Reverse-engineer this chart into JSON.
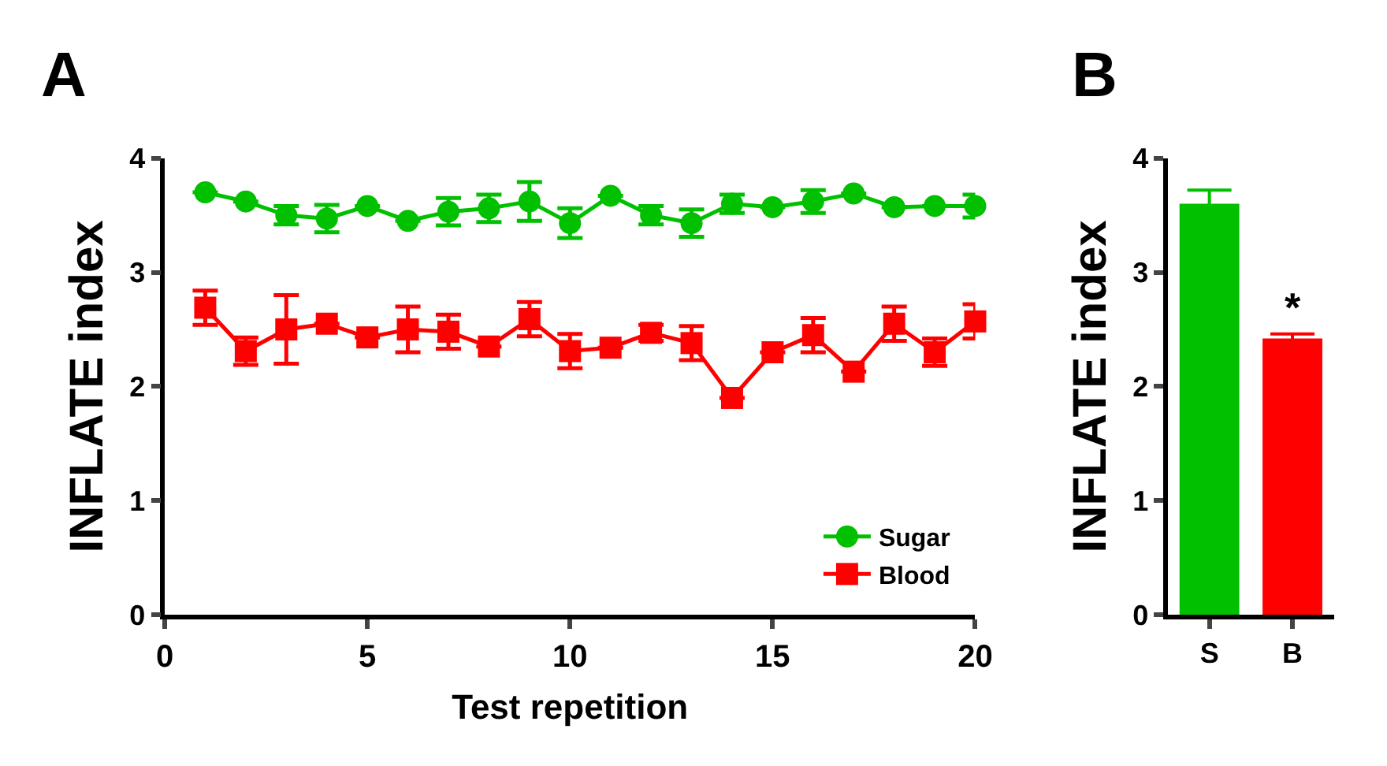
{
  "chart_data": [
    {
      "type": "line",
      "title": "A",
      "xlabel": "Test repetition",
      "ylabel": "INFLATE index",
      "x": [
        1,
        2,
        3,
        4,
        5,
        6,
        7,
        8,
        9,
        10,
        11,
        12,
        13,
        14,
        15,
        16,
        17,
        18,
        19,
        20
      ],
      "xlim": [
        0,
        20
      ],
      "xticks": [
        0,
        5,
        10,
        15,
        20
      ],
      "ylim": [
        0,
        4
      ],
      "yticks": [
        0,
        1,
        2,
        3,
        4
      ],
      "legend": "bottom right",
      "series": [
        {
          "name": "Sugar",
          "color": "#00c000",
          "marker": "circle",
          "values": [
            3.7,
            3.62,
            3.5,
            3.47,
            3.58,
            3.45,
            3.53,
            3.56,
            3.62,
            3.43,
            3.67,
            3.5,
            3.43,
            3.6,
            3.57,
            3.62,
            3.69,
            3.57,
            3.58,
            3.58
          ],
          "errors": [
            null,
            null,
            0.08,
            0.12,
            null,
            null,
            0.12,
            0.12,
            0.17,
            0.13,
            null,
            0.08,
            0.12,
            0.08,
            null,
            0.1,
            null,
            null,
            null,
            0.1
          ]
        },
        {
          "name": "Blood",
          "color": "#ff0000",
          "marker": "square",
          "values": [
            2.69,
            2.31,
            2.5,
            2.55,
            2.43,
            2.5,
            2.48,
            2.35,
            2.59,
            2.31,
            2.34,
            2.47,
            2.38,
            1.9,
            2.3,
            2.45,
            2.13,
            2.55,
            2.3,
            2.57
          ],
          "errors": [
            0.15,
            0.12,
            0.3,
            null,
            null,
            0.2,
            0.15,
            null,
            0.15,
            0.15,
            null,
            0.07,
            0.15,
            null,
            null,
            0.15,
            null,
            0.15,
            0.12,
            0.15
          ]
        }
      ]
    },
    {
      "type": "bar",
      "title": "B",
      "ylabel": "INFLATE index",
      "categories": [
        "S",
        "B"
      ],
      "values": [
        3.6,
        2.42
      ],
      "errors": [
        0.12,
        0.04
      ],
      "colors": [
        "#00c000",
        "#ff0000"
      ],
      "ylim": [
        0,
        4
      ],
      "yticks": [
        0,
        1,
        2,
        3,
        4
      ],
      "annotations": [
        {
          "text": "*",
          "x": "B",
          "y": 2.46
        }
      ]
    }
  ]
}
